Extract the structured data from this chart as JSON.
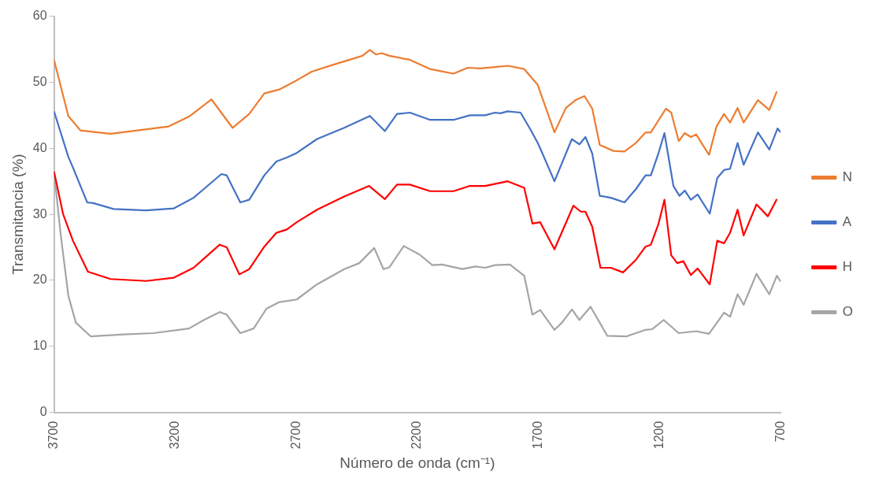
{
  "chart_data": {
    "type": "line",
    "xlabel": "Número de onda (cm⁻¹)",
    "ylabel": "Transmitancia (%)",
    "xlim": [
      3700,
      700
    ],
    "xticks": [
      3700,
      3200,
      2700,
      2200,
      1700,
      1200,
      700
    ],
    "ylim": [
      0,
      60
    ],
    "yticks": [
      0,
      10,
      20,
      30,
      40,
      50,
      60
    ],
    "grid": false,
    "legend": "right",
    "marker": "none",
    "line_style": "solid",
    "series": [
      {
        "name": "N",
        "color": "#ed7d31",
        "x": [
          3700,
          3641,
          3591,
          3467,
          3227,
          3143,
          3050,
          2963,
          2894,
          2832,
          2770,
          2698,
          2636,
          2552,
          2427,
          2396,
          2371,
          2347,
          2315,
          2231,
          2147,
          2107,
          2051,
          1992,
          1942,
          1880,
          1827,
          1759,
          1703,
          1634,
          1587,
          1547,
          1510,
          1478,
          1447,
          1391,
          1345,
          1298,
          1258,
          1236,
          1174,
          1152,
          1121,
          1096,
          1071,
          1049,
          996,
          965,
          934,
          909,
          878,
          853,
          794,
          747,
          716
        ],
        "values": [
          53.4,
          44.9,
          42.7,
          42.2,
          43.3,
          44.8,
          47.4,
          43.1,
          45.2,
          48.3,
          48.9,
          50.3,
          51.6,
          52.6,
          54.0,
          54.9,
          54.2,
          54.4,
          54.0,
          53.4,
          52.0,
          51.7,
          51.3,
          52.2,
          52.1,
          52.3,
          52.5,
          52.0,
          49.6,
          42.4,
          46.1,
          47.3,
          47.9,
          46.0,
          40.5,
          39.6,
          39.5,
          40.8,
          42.4,
          42.4,
          46.0,
          45.4,
          41.1,
          42.3,
          41.7,
          42.1,
          39.0,
          43.3,
          45.2,
          43.9,
          46.1,
          43.9,
          47.3,
          45.8,
          48.6
        ]
      },
      {
        "name": "A",
        "color": "#4472c4",
        "x": [
          3700,
          3641,
          3622,
          3563,
          3538,
          3454,
          3320,
          3205,
          3124,
          3009,
          2987,
          2931,
          2894,
          2832,
          2782,
          2739,
          2698,
          2614,
          2502,
          2396,
          2334,
          2284,
          2231,
          2147,
          2051,
          1983,
          1920,
          1880,
          1858,
          1827,
          1774,
          1734,
          1703,
          1693,
          1634,
          1562,
          1531,
          1506,
          1478,
          1447,
          1401,
          1345,
          1298,
          1258,
          1236,
          1205,
          1180,
          1143,
          1118,
          1096,
          1071,
          1043,
          993,
          962,
          934,
          909,
          878,
          853,
          794,
          747,
          713,
          700
        ],
        "values": [
          45.6,
          38.7,
          37.1,
          31.8,
          31.7,
          30.8,
          30.6,
          30.9,
          32.5,
          36.1,
          35.9,
          31.8,
          32.2,
          35.9,
          38.0,
          38.6,
          39.3,
          41.4,
          43.1,
          44.9,
          42.6,
          45.2,
          45.4,
          44.3,
          44.3,
          45.0,
          45.0,
          45.4,
          45.3,
          45.6,
          45.4,
          42.9,
          40.8,
          40.0,
          35.0,
          41.4,
          40.6,
          41.7,
          39.2,
          32.8,
          32.5,
          31.8,
          33.8,
          35.9,
          35.9,
          39.2,
          42.3,
          34.3,
          32.8,
          33.6,
          32.2,
          33.0,
          30.1,
          35.5,
          36.7,
          36.9,
          40.8,
          37.5,
          42.4,
          39.8,
          43.0,
          42.4
        ]
      },
      {
        "name": "H",
        "color": "#ff0000",
        "x": [
          3700,
          3663,
          3622,
          3560,
          3467,
          3320,
          3205,
          3124,
          3016,
          2987,
          2935,
          2894,
          2832,
          2782,
          2739,
          2698,
          2614,
          2502,
          2399,
          2334,
          2284,
          2231,
          2147,
          2051,
          1983,
          1920,
          1827,
          1759,
          1725,
          1693,
          1634,
          1556,
          1525,
          1506,
          1478,
          1444,
          1401,
          1351,
          1298,
          1258,
          1236,
          1205,
          1180,
          1152,
          1127,
          1102,
          1071,
          1043,
          993,
          962,
          934,
          909,
          878,
          853,
          800,
          753,
          716
        ],
        "values": [
          36.5,
          30.1,
          26.0,
          21.3,
          20.2,
          19.9,
          20.4,
          21.9,
          25.4,
          25.0,
          20.9,
          21.7,
          25.1,
          27.2,
          27.7,
          28.8,
          30.7,
          32.7,
          34.3,
          32.3,
          34.5,
          34.5,
          33.5,
          33.5,
          34.3,
          34.3,
          35.0,
          34.0,
          28.6,
          28.8,
          24.7,
          31.3,
          30.4,
          30.4,
          28.1,
          21.9,
          21.9,
          21.2,
          23.1,
          25.1,
          25.4,
          28.5,
          32.2,
          23.8,
          22.6,
          22.9,
          20.8,
          21.8,
          19.4,
          26.0,
          25.6,
          27.2,
          30.7,
          26.8,
          31.5,
          29.7,
          32.3
        ]
      },
      {
        "name": "O",
        "color": "#a5a5a5",
        "x": [
          3700,
          3672,
          3641,
          3610,
          3548,
          3414,
          3289,
          3143,
          3081,
          3016,
          2987,
          2931,
          2876,
          2823,
          2770,
          2698,
          2614,
          2502,
          2440,
          2378,
          2340,
          2315,
          2256,
          2191,
          2138,
          2098,
          2014,
          1961,
          1920,
          1880,
          1818,
          1759,
          1725,
          1693,
          1634,
          1603,
          1562,
          1531,
          1485,
          1416,
          1338,
          1258,
          1230,
          1183,
          1121,
          1049,
          996,
          934,
          909,
          878,
          853,
          800,
          747,
          716,
          700
        ],
        "values": [
          36.5,
          26.8,
          17.7,
          13.6,
          11.5,
          11.8,
          12.0,
          12.7,
          14.0,
          15.2,
          14.8,
          12.0,
          12.7,
          15.7,
          16.7,
          17.1,
          19.4,
          21.7,
          22.6,
          24.9,
          21.7,
          22.0,
          25.2,
          23.9,
          22.3,
          22.4,
          21.7,
          22.1,
          21.9,
          22.3,
          22.4,
          20.7,
          14.8,
          15.5,
          12.5,
          13.6,
          15.6,
          14.0,
          16.0,
          11.6,
          11.5,
          12.5,
          12.6,
          14.0,
          12.0,
          12.3,
          11.9,
          15.1,
          14.5,
          17.9,
          16.3,
          21.0,
          17.9,
          20.7,
          19.8
        ]
      }
    ]
  }
}
